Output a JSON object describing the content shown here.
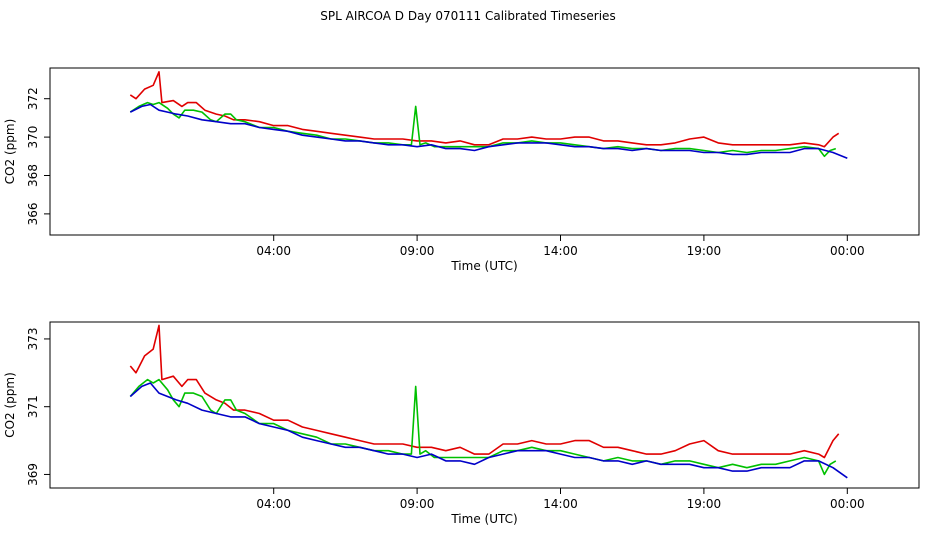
{
  "title": "SPL  AIRCOA D  Day 070111  Calibrated Timeseries",
  "colors": {
    "red": "#e00000",
    "green": "#00c000",
    "blue": "#0000c8",
    "axis": "#000000"
  },
  "chart_data": [
    {
      "type": "line",
      "title": "SPL  AIRCOA D  Day 070111  Calibrated Timeseries",
      "xlabel": "Time (UTC)",
      "ylabel": "CO2 (ppm)",
      "xlim": [
        -3.8,
        26.5
      ],
      "ylim": [
        364.9,
        373.6
      ],
      "xticks": [
        {
          "x": 4,
          "label": "04:00"
        },
        {
          "x": 9,
          "label": "09:00"
        },
        {
          "x": 14,
          "label": "14:00"
        },
        {
          "x": 19,
          "label": "19:00"
        },
        {
          "x": 24,
          "label": "00:00"
        }
      ],
      "yticks": [
        {
          "y": 366,
          "label": "366"
        },
        {
          "y": 368,
          "label": "368"
        },
        {
          "y": 370,
          "label": "370"
        },
        {
          "y": 372,
          "label": "372"
        }
      ],
      "series": [
        {
          "name": "red",
          "color": "#e00000",
          "x": [
            -1,
            -0.8,
            -0.5,
            -0.2,
            0,
            0.1,
            0.5,
            0.8,
            1,
            1.3,
            1.6,
            2,
            2.3,
            2.6,
            3,
            3.5,
            4,
            4.5,
            5,
            5.5,
            6,
            6.5,
            7,
            7.5,
            8,
            8.5,
            9,
            9.5,
            10,
            10.5,
            11,
            11.5,
            12,
            12.5,
            13,
            13.5,
            14,
            14.5,
            15,
            15.5,
            16,
            16.5,
            17,
            17.5,
            18,
            18.5,
            19,
            19.5,
            20,
            20.5,
            21,
            21.5,
            22,
            22.5,
            23,
            23.2,
            23.5,
            23.7
          ],
          "y": [
            372.2,
            372.0,
            372.5,
            372.7,
            373.4,
            371.8,
            371.9,
            371.6,
            371.8,
            371.8,
            371.4,
            371.2,
            371.1,
            370.9,
            370.9,
            370.8,
            370.6,
            370.6,
            370.4,
            370.3,
            370.2,
            370.1,
            370.0,
            369.9,
            369.9,
            369.9,
            369.8,
            369.8,
            369.7,
            369.8,
            369.6,
            369.6,
            369.9,
            369.9,
            370.0,
            369.9,
            369.9,
            370.0,
            370.0,
            369.8,
            369.8,
            369.7,
            369.6,
            369.6,
            369.7,
            369.9,
            370.0,
            369.7,
            369.6,
            369.6,
            369.6,
            369.6,
            369.6,
            369.7,
            369.6,
            369.5,
            370.0,
            370.2
          ]
        },
        {
          "name": "green",
          "color": "#00c000",
          "x": [
            -1,
            -0.7,
            -0.4,
            -0.2,
            0,
            0.3,
            0.5,
            0.7,
            0.9,
            1.2,
            1.5,
            1.8,
            2,
            2.3,
            2.5,
            2.7,
            3,
            3.5,
            4,
            4.5,
            5,
            5.5,
            6,
            6.5,
            7,
            7.5,
            8,
            8.5,
            8.8,
            8.95,
            9.1,
            9.3,
            9.6,
            10,
            10.5,
            11,
            11.5,
            12,
            12.5,
            13,
            13.5,
            14,
            14.5,
            15,
            15.5,
            16,
            16.5,
            17,
            17.5,
            18,
            18.5,
            19,
            19.5,
            20,
            20.5,
            21,
            21.5,
            22,
            22.5,
            23,
            23.2,
            23.4,
            23.6
          ],
          "y": [
            371.3,
            371.6,
            371.8,
            371.7,
            371.8,
            371.5,
            371.2,
            371.0,
            371.4,
            371.4,
            371.3,
            370.9,
            370.8,
            371.2,
            371.2,
            370.9,
            370.8,
            370.5,
            370.5,
            370.3,
            370.2,
            370.1,
            369.9,
            369.9,
            369.8,
            369.7,
            369.7,
            369.6,
            369.6,
            371.6,
            369.6,
            369.7,
            369.5,
            369.5,
            369.5,
            369.5,
            369.5,
            369.7,
            369.7,
            369.8,
            369.7,
            369.7,
            369.6,
            369.5,
            369.4,
            369.5,
            369.4,
            369.4,
            369.3,
            369.4,
            369.4,
            369.3,
            369.2,
            369.3,
            369.2,
            369.3,
            369.3,
            369.4,
            369.5,
            369.4,
            369.0,
            369.3,
            369.4
          ]
        },
        {
          "name": "blue",
          "color": "#0000c8",
          "x": [
            -1,
            -0.6,
            -0.3,
            0,
            0.3,
            0.6,
            1,
            1.5,
            2,
            2.5,
            3,
            3.5,
            4,
            4.5,
            5,
            5.5,
            6,
            6.5,
            7,
            7.5,
            8,
            8.5,
            9,
            9.5,
            10,
            10.5,
            11,
            11.5,
            12,
            12.5,
            13,
            13.5,
            14,
            14.5,
            15,
            15.5,
            16,
            16.5,
            17,
            17.5,
            18,
            18.5,
            19,
            19.5,
            20,
            20.5,
            21,
            21.5,
            22,
            22.5,
            23,
            23.5,
            24
          ],
          "y": [
            371.3,
            371.6,
            371.7,
            371.4,
            371.3,
            371.2,
            371.1,
            370.9,
            370.8,
            370.7,
            370.7,
            370.5,
            370.4,
            370.3,
            370.1,
            370.0,
            369.9,
            369.8,
            369.8,
            369.7,
            369.6,
            369.6,
            369.5,
            369.6,
            369.4,
            369.4,
            369.3,
            369.5,
            369.6,
            369.7,
            369.7,
            369.7,
            369.6,
            369.5,
            369.5,
            369.4,
            369.4,
            369.3,
            369.4,
            369.3,
            369.3,
            369.3,
            369.2,
            369.2,
            369.1,
            369.1,
            369.2,
            369.2,
            369.2,
            369.4,
            369.4,
            369.2,
            368.9
          ]
        }
      ]
    },
    {
      "type": "line",
      "xlabel": "Time (UTC)",
      "ylabel": "CO2 (ppm)",
      "xlim": [
        -3.8,
        26.5
      ],
      "ylim": [
        368.6,
        373.5
      ],
      "xticks": [
        {
          "x": 4,
          "label": "04:00"
        },
        {
          "x": 9,
          "label": "09:00"
        },
        {
          "x": 14,
          "label": "14:00"
        },
        {
          "x": 19,
          "label": "19:00"
        },
        {
          "x": 24,
          "label": "00:00"
        }
      ],
      "yticks": [
        {
          "y": 369,
          "label": "369"
        },
        {
          "y": 371,
          "label": "371"
        },
        {
          "y": 373,
          "label": "373"
        }
      ],
      "series": [
        {
          "name": "red",
          "color": "#e00000",
          "x": [
            -1,
            -0.8,
            -0.5,
            -0.2,
            0,
            0.1,
            0.5,
            0.8,
            1,
            1.3,
            1.6,
            2,
            2.3,
            2.6,
            3,
            3.5,
            4,
            4.5,
            5,
            5.5,
            6,
            6.5,
            7,
            7.5,
            8,
            8.5,
            9,
            9.5,
            10,
            10.5,
            11,
            11.5,
            12,
            12.5,
            13,
            13.5,
            14,
            14.5,
            15,
            15.5,
            16,
            16.5,
            17,
            17.5,
            18,
            18.5,
            19,
            19.5,
            20,
            20.5,
            21,
            21.5,
            22,
            22.5,
            23,
            23.2,
            23.5,
            23.7
          ],
          "y": [
            372.2,
            372.0,
            372.5,
            372.7,
            373.4,
            371.8,
            371.9,
            371.6,
            371.8,
            371.8,
            371.4,
            371.2,
            371.1,
            370.9,
            370.9,
            370.8,
            370.6,
            370.6,
            370.4,
            370.3,
            370.2,
            370.1,
            370.0,
            369.9,
            369.9,
            369.9,
            369.8,
            369.8,
            369.7,
            369.8,
            369.6,
            369.6,
            369.9,
            369.9,
            370.0,
            369.9,
            369.9,
            370.0,
            370.0,
            369.8,
            369.8,
            369.7,
            369.6,
            369.6,
            369.7,
            369.9,
            370.0,
            369.7,
            369.6,
            369.6,
            369.6,
            369.6,
            369.6,
            369.7,
            369.6,
            369.5,
            370.0,
            370.2
          ]
        },
        {
          "name": "green",
          "color": "#00c000",
          "x": [
            -1,
            -0.7,
            -0.4,
            -0.2,
            0,
            0.3,
            0.5,
            0.7,
            0.9,
            1.2,
            1.5,
            1.8,
            2,
            2.3,
            2.5,
            2.7,
            3,
            3.5,
            4,
            4.5,
            5,
            5.5,
            6,
            6.5,
            7,
            7.5,
            8,
            8.5,
            8.8,
            8.95,
            9.1,
            9.3,
            9.6,
            10,
            10.5,
            11,
            11.5,
            12,
            12.5,
            13,
            13.5,
            14,
            14.5,
            15,
            15.5,
            16,
            16.5,
            17,
            17.5,
            18,
            18.5,
            19,
            19.5,
            20,
            20.5,
            21,
            21.5,
            22,
            22.5,
            23,
            23.2,
            23.4,
            23.6
          ],
          "y": [
            371.3,
            371.6,
            371.8,
            371.7,
            371.8,
            371.5,
            371.2,
            371.0,
            371.4,
            371.4,
            371.3,
            370.9,
            370.8,
            371.2,
            371.2,
            370.9,
            370.8,
            370.5,
            370.5,
            370.3,
            370.2,
            370.1,
            369.9,
            369.9,
            369.8,
            369.7,
            369.7,
            369.6,
            369.6,
            371.6,
            369.6,
            369.7,
            369.5,
            369.5,
            369.5,
            369.5,
            369.5,
            369.7,
            369.7,
            369.8,
            369.7,
            369.7,
            369.6,
            369.5,
            369.4,
            369.5,
            369.4,
            369.4,
            369.3,
            369.4,
            369.4,
            369.3,
            369.2,
            369.3,
            369.2,
            369.3,
            369.3,
            369.4,
            369.5,
            369.4,
            369.0,
            369.3,
            369.4
          ]
        },
        {
          "name": "blue",
          "color": "#0000c8",
          "x": [
            -1,
            -0.6,
            -0.3,
            0,
            0.3,
            0.6,
            1,
            1.5,
            2,
            2.5,
            3,
            3.5,
            4,
            4.5,
            5,
            5.5,
            6,
            6.5,
            7,
            7.5,
            8,
            8.5,
            9,
            9.5,
            10,
            10.5,
            11,
            11.5,
            12,
            12.5,
            13,
            13.5,
            14,
            14.5,
            15,
            15.5,
            16,
            16.5,
            17,
            17.5,
            18,
            18.5,
            19,
            19.5,
            20,
            20.5,
            21,
            21.5,
            22,
            22.5,
            23,
            23.5,
            24
          ],
          "y": [
            371.3,
            371.6,
            371.7,
            371.4,
            371.3,
            371.2,
            371.1,
            370.9,
            370.8,
            370.7,
            370.7,
            370.5,
            370.4,
            370.3,
            370.1,
            370.0,
            369.9,
            369.8,
            369.8,
            369.7,
            369.6,
            369.6,
            369.5,
            369.6,
            369.4,
            369.4,
            369.3,
            369.5,
            369.6,
            369.7,
            369.7,
            369.7,
            369.6,
            369.5,
            369.5,
            369.4,
            369.4,
            369.3,
            369.4,
            369.3,
            369.3,
            369.3,
            369.2,
            369.2,
            369.1,
            369.1,
            369.2,
            369.2,
            369.2,
            369.4,
            369.4,
            369.2,
            368.9
          ]
        }
      ]
    }
  ]
}
